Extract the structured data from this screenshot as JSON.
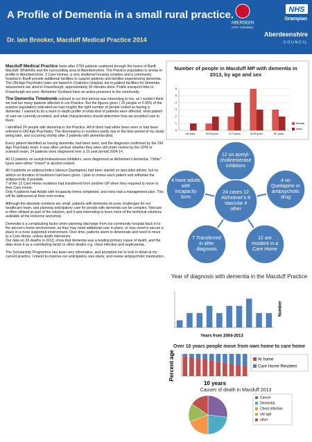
{
  "header": {
    "title": "A Profile of Dementia in a small rural practice.",
    "subtitle": "Dr. Iain Brooker, Macduff Medical Practice 2014",
    "logos": {
      "city": "ABERDEEN",
      "city_sub": "CITY COUNCIL",
      "nhs": "NHS",
      "nhs_sub": "Grampian",
      "shire": "Aberdeenshire",
      "shire_sub": "COUNCIL"
    }
  },
  "body": {
    "paragraphs": [
      {
        "lead": "Macduff Medical Practice",
        "text": " looks after 2750 patients scattered through the towns of Banff, Macduff, Whitehills and the surrounding area of Aberdeenshire. The Practice population is similar in profile to Aberdeenshire. 2 Care Homes, a very sheltered housing complex and a community hospital in Banff provide additional facilities to support patients and families experiencing dementia. The Old Age Psychiatry team are based in Chalmers Hospital, but in-patient facilities for dementia assessment are sited in Fraserburgh, approximately 35 minutes drive. Public transport links to Fraserburgh are poor. Alzheimer Scotland have an active presence in the community."
      },
      {
        "lead": "The Dementia Timebomb",
        "text": " outlined in our first tutorial was interesting to me, as I couldn't think we had too many patients affected in our Practice. But the figures given ( 25 people or 0.95% of the practice population) indicated we had roughly the right number of people coded as having a dementia.  I wanted to do a more in-depth profile of what kind of patients were affected, what pattern of care we currently provided, and what characteristics should determine how we provided care to them."
      },
      {
        "text": "I identified 24 people with dementia in the Practice. All of them had either been seen or had been referred to Old Age Psychiatry. The discrepancy in numbers partly due to the time period of my study being later, and occurring shortly after 2 patients with dementia died."
      },
      {
        "text": "Every patient identified as having dementia, had been seen, and the diagnosis confirmed by the Old Age Psychiatry team. It was often unclear whether they were still under review by the CPN or outreach team. 24 patients were diagnosed over a 10 year period 2004-14."
      },
      {
        "text": "All 12 patients on acetylcholinesterase inhibitors, were diagnosed as Alzheimer's dementia. \"Other\" types were either \"mixed\" or alcohol related."
      },
      {
        "text": "All 4 patients on antipsychotics (always Quetiapine) had been started on specialist advice, but no advice on duration of treatment had been given. I plan to review each patient and withdraw the antipsychotic if possible.\n7 of the 12 Care Home residents had transferred from another GP when they required to move to their Care Home.\nOnly 4 patients had Adults with Incapacity forms completed, and none had a management plan. This will be addressed at their next review."
      },
      {
        "text": "Although the absolute numbers are small, patients with dementia do pose challenges for our healthcare team, and planning anticipatory care for people with dementia can be complex. Telecare is often utilised as part of the solution, and it was interesting to learn more of the technical solutions available at the Horizons workshop."
      },
      {
        "text": "Dementia is a complicating factor when planning discharge from our community hospital back in to the person's home environment, as they may need additional care in place, or may need to secure a place in a more supported environment. Over time, patients seem to deteriorate and need to move to a Care Home, unless death intervenes.\nOur data on 26 deaths in 2013, show that dementia was a leading primary cause of death, and the data show it as a contributing factor to other deaths e.g. chest infection and septicaemia."
      },
      {
        "text": "The Scholarship Programme has been very informative, and prompted me to look in detail at my current practice. I intend to improve our anticipatory care plans, and review antipsychotic medication."
      }
    ]
  },
  "diagram": {
    "center": "24 cases 12 Alzheimer's 8 Vascular 4 other",
    "nodes": [
      "12 on acetyl-cholinesterase inhibitors",
      "4 on Quetiapine or antipsychotic drug",
      "12 are resident in a Care Home",
      "7 Transferred in after diagnosis",
      "4 have adults with incapacity form"
    ]
  },
  "chart_data": [
    {
      "type": "bar",
      "title": "Number of people in Macduff MP with dementia in 2013, by age and sex",
      "categories": [
        "<65 years",
        "65-69 years",
        "70-79 years",
        "80-89 years",
        "90+ years"
      ],
      "series": [
        {
          "name": "female",
          "color": "#d9534f",
          "values": [
            0,
            1,
            2,
            6,
            3
          ]
        },
        {
          "name": "male",
          "color": "#9e2a2a",
          "values": [
            1,
            2,
            4,
            3,
            2
          ]
        }
      ],
      "ylim": [
        0,
        6
      ],
      "yticks": [
        0,
        1,
        2,
        3,
        4,
        5,
        6
      ]
    },
    {
      "type": "bar",
      "title": "Year of diagnosis with dementia in the Macduff Practice",
      "x_label": "Years from 2004-2013",
      "y_label": "Number",
      "categories": [
        null,
        null,
        null,
        null,
        null,
        null,
        null,
        null,
        null,
        null
      ],
      "values": [
        1,
        2,
        2,
        3,
        2,
        3,
        3,
        4,
        2,
        2
      ],
      "color": "#4f81bd",
      "ylim": [
        0,
        5
      ]
    },
    {
      "type": "stacked_bar",
      "title": "Over 10 years people move from own home to care home",
      "y_label": "Percent age",
      "x_label": "10 years",
      "categories": [
        null,
        null,
        null,
        null,
        null,
        null,
        null,
        null,
        null,
        null
      ],
      "series": [
        {
          "name": "At home",
          "color": "#c0504d",
          "values": [
            90,
            85,
            80,
            75,
            70,
            65,
            60,
            55,
            50,
            45
          ]
        },
        {
          "name": "Care Home Resident",
          "color": "#4f81bd",
          "values": [
            10,
            15,
            20,
            25,
            30,
            35,
            40,
            45,
            50,
            55
          ]
        }
      ],
      "ylim": [
        0,
        100
      ]
    },
    {
      "type": "pie",
      "title": "Causes of death in Macduff 2013",
      "categories": [
        "Cancer",
        "Dementia",
        "Chest infection",
        "old age",
        "other"
      ],
      "values": [
        7,
        6,
        5,
        4,
        4
      ],
      "colors": [
        "#8064a2",
        "#4bacc6",
        "#f79646",
        "#9bbb59",
        "#c0504d"
      ]
    }
  ]
}
